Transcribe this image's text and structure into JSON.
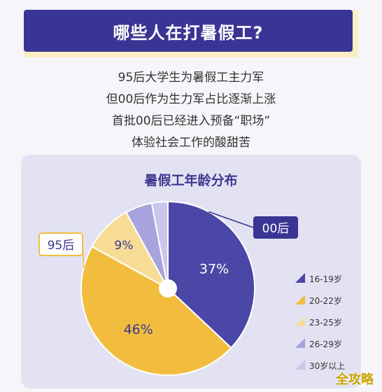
{
  "header": {
    "title": "哪些人在打暑假工?"
  },
  "intro": {
    "lines": [
      "95后大学生为暑假工主力军",
      "但00后作为生力军占比逐渐上涨",
      "首批00后已经进入预备“职场”",
      "体验社会工作的酸甜苦"
    ]
  },
  "chart_data": {
    "type": "pie",
    "title": "暑假工年龄分布",
    "series": [
      {
        "name": "16-19岁",
        "value": 37,
        "label": "37%",
        "color": "#4b47a6"
      },
      {
        "name": "20-22岁",
        "value": 46,
        "label": "46%",
        "color": "#f2bd3e"
      },
      {
        "name": "23-25岁",
        "value": 9,
        "label": "9%",
        "color": "#f7dc96"
      },
      {
        "name": "26-29岁",
        "value": 5,
        "label": "",
        "color": "#a7a3dc"
      },
      {
        "name": "30岁以上",
        "value": 3,
        "label": "",
        "color": "#c9c7ea"
      }
    ],
    "callouts": {
      "gen00": "00后",
      "gen95": "95后"
    },
    "legend_position": "right"
  },
  "colors": {
    "brand": "#3a3594",
    "accent": "#f2bd3e",
    "card": "#e3e2f2"
  },
  "watermark": "全攻略"
}
